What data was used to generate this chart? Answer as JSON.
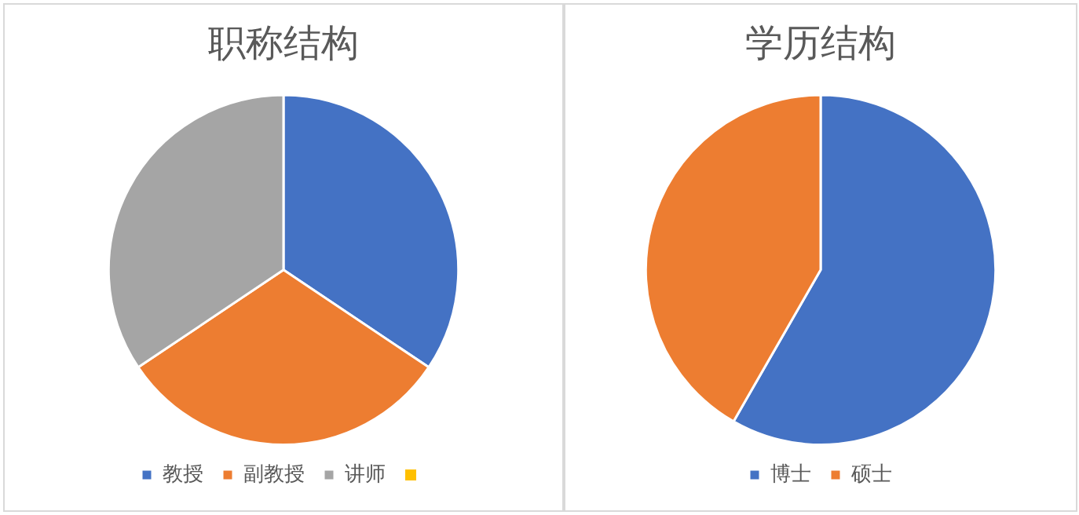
{
  "chart_data": [
    {
      "type": "pie",
      "title": "职称结构",
      "categories": [
        "教授",
        "副教授",
        "讲师",
        null
      ],
      "values": [
        34.4,
        31.2,
        34.4,
        0
      ],
      "colors": [
        "#4472c4",
        "#ed7d31",
        "#a5a5a5",
        "#ffc000"
      ],
      "legend": "bottom"
    },
    {
      "type": "pie",
      "title": "学历结构",
      "categories": [
        "博士",
        "硕士"
      ],
      "values": [
        58.3,
        41.7
      ],
      "colors": [
        "#4472c4",
        "#ed7d31"
      ],
      "legend": "bottom"
    }
  ]
}
